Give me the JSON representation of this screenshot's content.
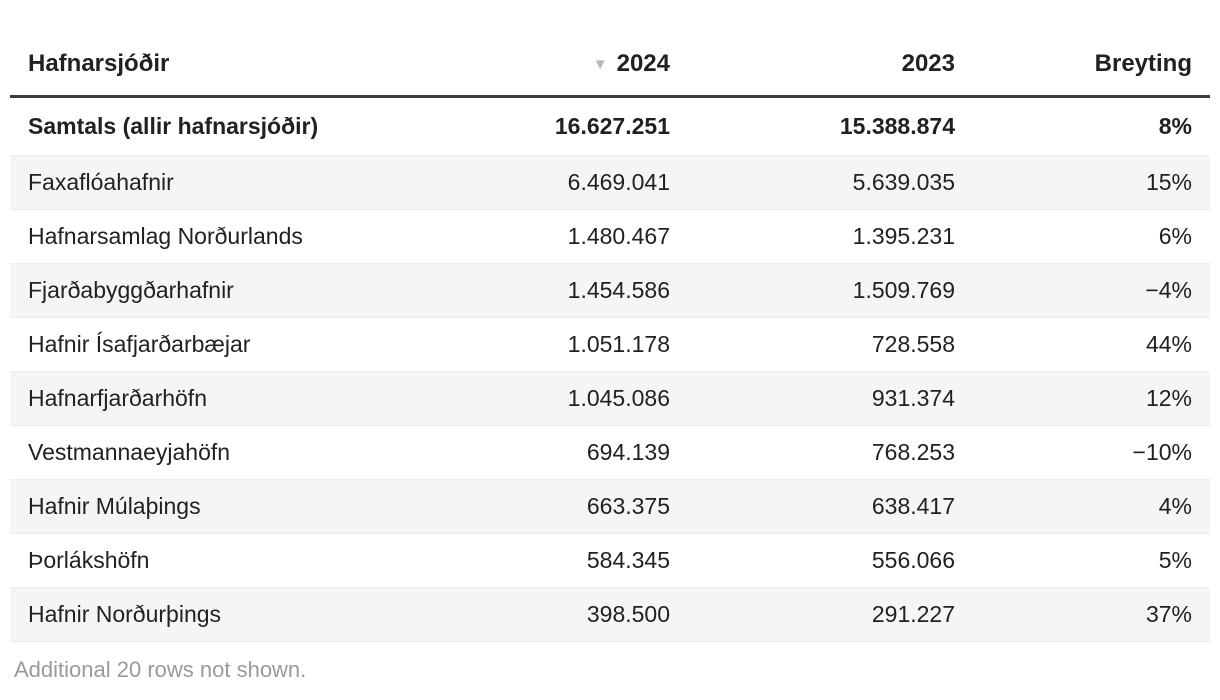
{
  "chart_data": {
    "type": "table",
    "title": "Hafnarsjóðir",
    "columns": [
      "Hafnarsjóðir",
      "2024",
      "2023",
      "Breyting"
    ],
    "sort": {
      "column": "2024",
      "direction": "desc"
    },
    "sort_icon": "▼",
    "total_row": {
      "name": "Samtals (allir hafnarsjóðir)",
      "y2024": "16.627.251",
      "y2023": "15.388.874",
      "change": "8%"
    },
    "rows": [
      {
        "name": "Faxaflóahafnir",
        "y2024": "6.469.041",
        "y2023": "5.639.035",
        "change": "15%"
      },
      {
        "name": "Hafnarsamlag Norðurlands",
        "y2024": "1.480.467",
        "y2023": "1.395.231",
        "change": "6%"
      },
      {
        "name": "Fjarðabyggðarhafnir",
        "y2024": "1.454.586",
        "y2023": "1.509.769",
        "change": "−4%"
      },
      {
        "name": "Hafnir Ísafjarðarbæjar",
        "y2024": "1.051.178",
        "y2023": "728.558",
        "change": "44%"
      },
      {
        "name": "Hafnarfjarðarhöfn",
        "y2024": "1.045.086",
        "y2023": "931.374",
        "change": "12%"
      },
      {
        "name": "Vestmannaeyjahöfn",
        "y2024": "694.139",
        "y2023": "768.253",
        "change": "−10%"
      },
      {
        "name": "Hafnir Múlaþings",
        "y2024": "663.375",
        "y2023": "638.417",
        "change": "4%"
      },
      {
        "name": "Þorlákshöfn",
        "y2024": "584.345",
        "y2023": "556.066",
        "change": "5%"
      },
      {
        "name": "Hafnir Norðurþings",
        "y2024": "398.500",
        "y2023": "291.227",
        "change": "37%"
      }
    ],
    "footer_note": "Additional 20 rows not shown.",
    "layout": {
      "striped": true,
      "legend": "none",
      "grid": "horizontal-rules"
    }
  },
  "colors": {
    "text": "#212121",
    "stripe_row_bg": "#f5f5f5",
    "header_rule": "#3b3b3b",
    "row_divider": "#ececec",
    "footer_text": "#9a9a9a",
    "sort_icon": "#b4b9bd",
    "background": "#ffffff"
  }
}
